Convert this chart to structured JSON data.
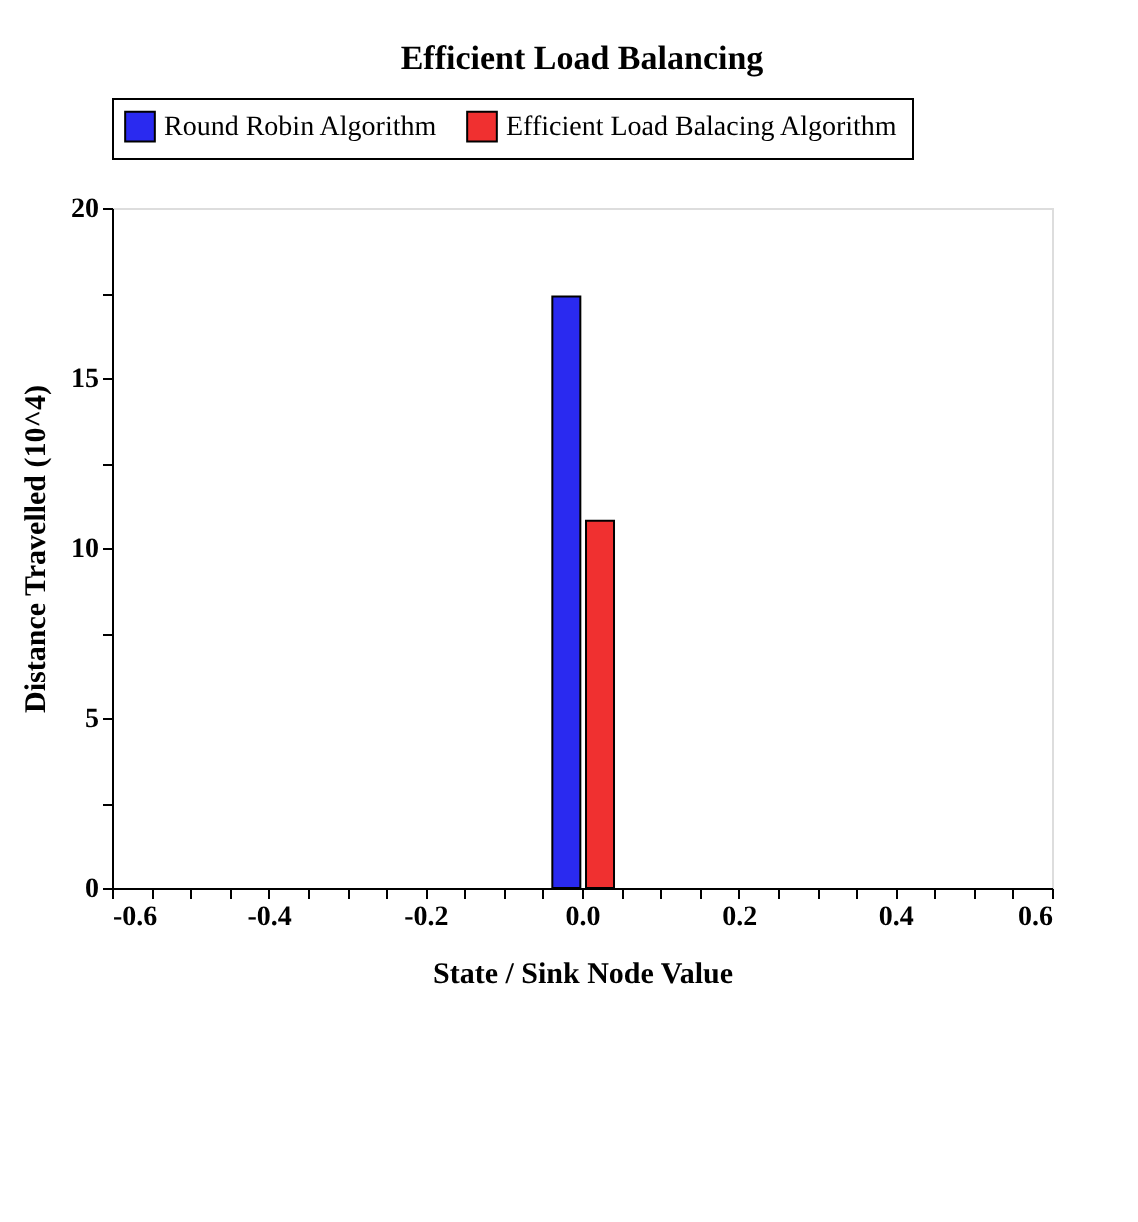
{
  "chart_data": {
    "type": "bar",
    "title": "Efficient Load Balancing",
    "xlabel": "State / Sink Node Value",
    "ylabel": "Distance Travelled (10^4)",
    "series": [
      {
        "name": "Round Robin Algorithm",
        "color": "#2a2af0",
        "x": [
          -0.02
        ],
        "values": [
          17.4
        ]
      },
      {
        "name": "Efficient Load Balacing Algorithm",
        "color": "#f03030",
        "x": [
          0.023
        ],
        "values": [
          10.8
        ]
      }
    ],
    "xlim": [
      -0.6,
      0.6
    ],
    "ylim": [
      0,
      20
    ],
    "xticks": [
      -0.6,
      {
        "value": -0.55,
        "label": null
      },
      {
        "value": -0.5,
        "label": null
      },
      {
        "value": -0.45,
        "label": null
      },
      -0.4,
      {
        "value": -0.35,
        "label": null
      },
      {
        "value": -0.3,
        "label": null
      },
      {
        "value": -0.25,
        "label": null
      },
      -0.2,
      {
        "value": -0.15,
        "label": null
      },
      {
        "value": -0.1,
        "label": null
      },
      {
        "value": -0.05,
        "label": null
      },
      {
        "value": 0,
        "label": "0.0"
      },
      {
        "value": 0.05,
        "label": null
      },
      {
        "value": 0.1,
        "label": null
      },
      {
        "value": 0.15,
        "label": null
      },
      0.2,
      {
        "value": 0.25,
        "label": null
      },
      {
        "value": 0.3,
        "label": null
      },
      {
        "value": 0.35,
        "label": null
      },
      0.4,
      {
        "value": 0.45,
        "label": null
      },
      {
        "value": 0.5,
        "label": null
      },
      {
        "value": 0.55,
        "label": null
      },
      0.6
    ],
    "yticks": [
      0,
      {
        "value": 2.5,
        "label": null
      },
      5,
      {
        "value": 7.5,
        "label": null
      },
      10,
      {
        "value": 12.5,
        "label": null
      },
      15,
      {
        "value": 17.5,
        "label": null
      },
      20
    ],
    "grid": false,
    "legend": "top"
  }
}
